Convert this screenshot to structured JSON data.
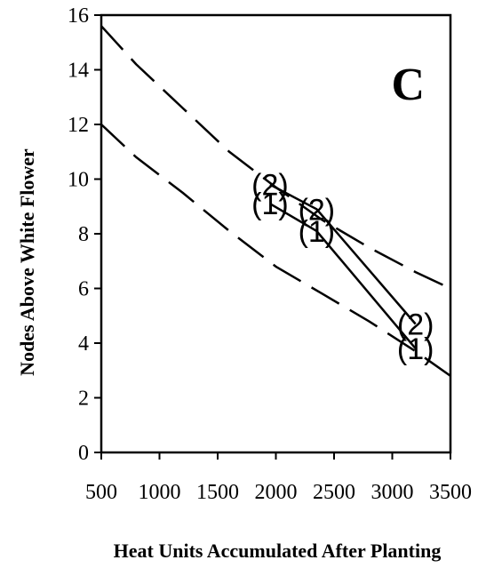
{
  "chart_data": {
    "type": "line",
    "panel_label": "C",
    "xlabel": "Heat Units Accumulated After Planting",
    "ylabel": "Nodes Above White Flower",
    "xlim": [
      500,
      3500
    ],
    "ylim": [
      0,
      16
    ],
    "x_ticks": [
      500,
      1000,
      1500,
      2000,
      2500,
      3000,
      3500
    ],
    "y_ticks": [
      0,
      2,
      4,
      6,
      8,
      10,
      12,
      14,
      16
    ],
    "grid": false,
    "legend": "none",
    "series": [
      {
        "style": "dashed",
        "x": [
          500,
          800,
          1200,
          1600,
          2000,
          2400,
          2800,
          3200,
          3500
        ],
        "y": [
          15.6,
          14.2,
          12.6,
          11.0,
          9.7,
          8.5,
          7.5,
          6.6,
          6.0
        ]
      },
      {
        "style": "dashed",
        "x": [
          500,
          800,
          1200,
          1600,
          2000,
          2400,
          2800,
          3200,
          3500
        ],
        "y": [
          12.0,
          10.8,
          9.5,
          8.1,
          6.8,
          5.8,
          4.8,
          3.7,
          2.8
        ]
      },
      {
        "style": "solid",
        "marker_label": "(2)",
        "x": [
          1950,
          2350,
          3200
        ],
        "y": [
          9.8,
          8.9,
          4.7
        ]
      },
      {
        "style": "solid",
        "marker_label": "(1)",
        "x": [
          1950,
          2350,
          3200
        ],
        "y": [
          9.1,
          8.1,
          3.8
        ]
      }
    ],
    "point_labels": [
      {
        "text": "(2)",
        "x": 1950,
        "y": 9.8
      },
      {
        "text": "(1)",
        "x": 1950,
        "y": 9.1
      },
      {
        "text": "(2)",
        "x": 2350,
        "y": 8.9
      },
      {
        "text": "(1)",
        "x": 2350,
        "y": 8.1
      },
      {
        "text": "(2)",
        "x": 3200,
        "y": 4.7
      },
      {
        "text": "(1)",
        "x": 3200,
        "y": 3.8
      }
    ]
  }
}
